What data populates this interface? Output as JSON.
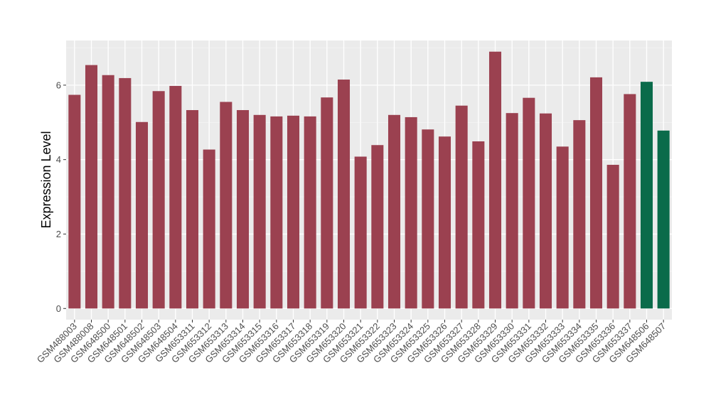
{
  "chart_data": {
    "type": "bar",
    "title": "",
    "xlabel": "",
    "ylabel": "Expression Level",
    "ylim": [
      -0.3,
      7.2
    ],
    "yticks": [
      0,
      2,
      4,
      6
    ],
    "grid": true,
    "legend": "none",
    "colors": {
      "panel": "#EBEBEB",
      "grid_major": "#FFFFFF",
      "grid_minor": "#F5F5F5",
      "default_bar": "#9B4150",
      "highlight_bar": "#0A6B4A",
      "tick": "#333333"
    },
    "categories": [
      "GSM488003",
      "GSM488008",
      "GSM648500",
      "GSM648501",
      "GSM648502",
      "GSM648503",
      "GSM648504",
      "GSM653311",
      "GSM653312",
      "GSM653313",
      "GSM653314",
      "GSM653315",
      "GSM653316",
      "GSM653317",
      "GSM653318",
      "GSM653319",
      "GSM653320",
      "GSM653321",
      "GSM653322",
      "GSM653323",
      "GSM653324",
      "GSM653325",
      "GSM653326",
      "GSM653327",
      "GSM653328",
      "GSM653329",
      "GSM653330",
      "GSM653331",
      "GSM653332",
      "GSM653333",
      "GSM653334",
      "GSM653335",
      "GSM653336",
      "GSM653337",
      "GSM648506",
      "GSM648507"
    ],
    "values": [
      5.74,
      6.54,
      6.27,
      6.19,
      5.01,
      5.84,
      5.98,
      5.33,
      4.27,
      5.55,
      5.33,
      5.2,
      5.16,
      5.18,
      5.16,
      5.67,
      6.15,
      4.08,
      4.39,
      5.2,
      5.14,
      4.81,
      4.62,
      5.45,
      4.49,
      6.9,
      5.25,
      5.66,
      5.24,
      4.35,
      5.06,
      6.21,
      3.86,
      5.76,
      6.09,
      4.78
    ],
    "bar_groups": [
      "default",
      "default",
      "default",
      "default",
      "default",
      "default",
      "default",
      "default",
      "default",
      "default",
      "default",
      "default",
      "default",
      "default",
      "default",
      "default",
      "default",
      "default",
      "default",
      "default",
      "default",
      "default",
      "default",
      "default",
      "default",
      "default",
      "default",
      "default",
      "default",
      "default",
      "default",
      "default",
      "default",
      "default",
      "highlight",
      "highlight"
    ]
  }
}
